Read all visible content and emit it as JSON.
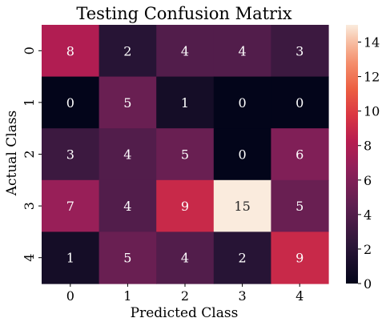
{
  "chart_data": {
    "type": "heatmap",
    "title": "Testing Confusion Matrix",
    "xlabel": "Predicted Class",
    "ylabel": "Actual Class",
    "x_categories": [
      "0",
      "1",
      "2",
      "3",
      "4"
    ],
    "y_categories": [
      "0",
      "1",
      "2",
      "3",
      "4"
    ],
    "values": [
      [
        8,
        2,
        4,
        4,
        3
      ],
      [
        0,
        5,
        1,
        0,
        0
      ],
      [
        3,
        4,
        5,
        0,
        6
      ],
      [
        7,
        4,
        9,
        15,
        5
      ],
      [
        1,
        5,
        4,
        2,
        9
      ]
    ],
    "colorbar": {
      "range": [
        0,
        15
      ],
      "ticks": [
        "0",
        "2",
        "4",
        "6",
        "8",
        "10",
        "12",
        "14"
      ]
    },
    "colormap": "rocket",
    "grid": false
  }
}
